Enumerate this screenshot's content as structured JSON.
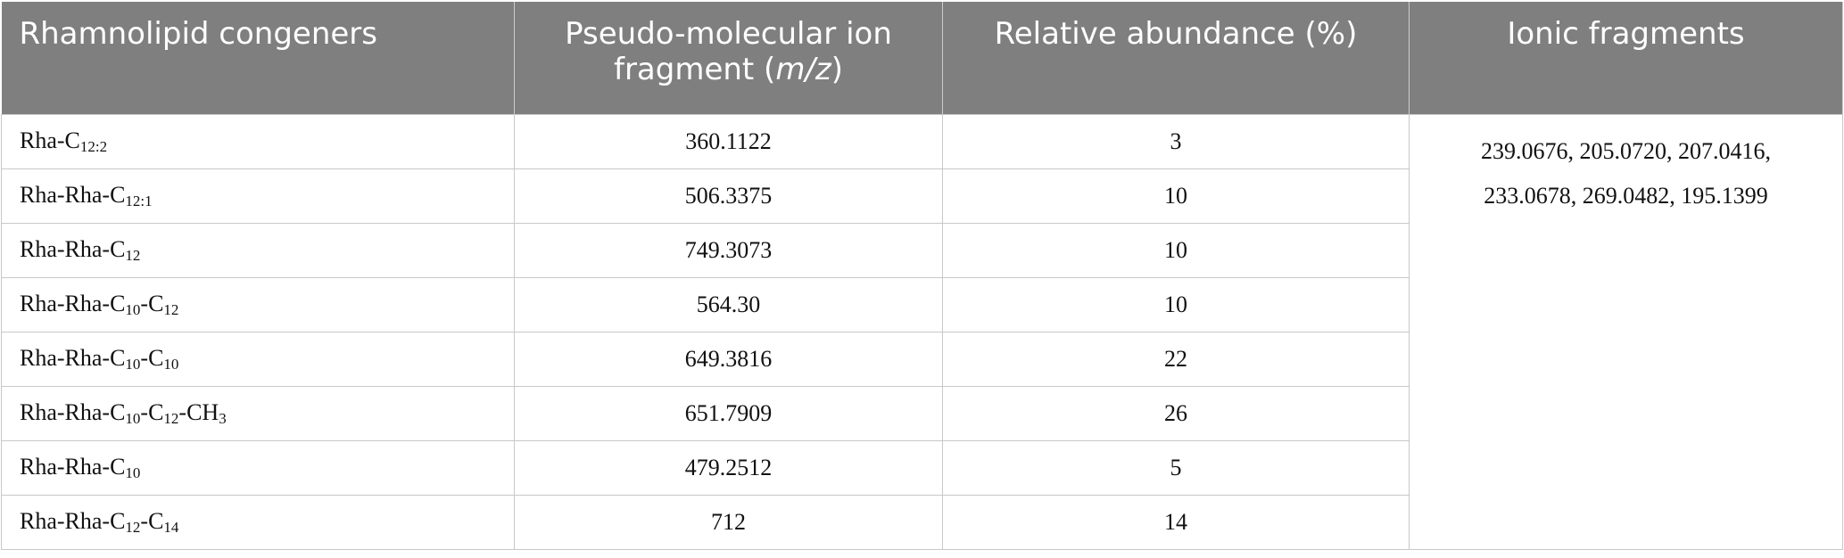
{
  "table": {
    "header": [
      [
        "Rhamnolipid congeners"
      ],
      [
        "Pseudo-molecular ion fragment (",
        "m/z",
        ")"
      ],
      [
        "Relative abundance (%)"
      ],
      [
        "Ionic fragments"
      ]
    ],
    "rows": [
      {
        "congener": [
          "Rha-C",
          "12:2"
        ],
        "ion": "360.1122",
        "abundance": "3"
      },
      {
        "congener": [
          "Rha-Rha-C",
          "12:1"
        ],
        "ion": "506.3375",
        "abundance": "10"
      },
      {
        "congener": [
          "Rha-Rha-C",
          "12"
        ],
        "ion": "749.3073",
        "abundance": "10"
      },
      {
        "congener": [
          "Rha-Rha-C",
          "10",
          "-C",
          "12"
        ],
        "ion": "564.30",
        "abundance": "10"
      },
      {
        "congener": [
          "Rha-Rha-C",
          "10",
          "-C",
          "10"
        ],
        "ion": "649.3816",
        "abundance": "22"
      },
      {
        "congener": [
          "Rha-Rha-C",
          "10",
          "-C",
          "12",
          "-CH",
          "3"
        ],
        "ion": "651.7909",
        "abundance": "26"
      },
      {
        "congener": [
          "Rha-Rha-C",
          "10"
        ],
        "ion": "479.2512",
        "abundance": "5"
      },
      {
        "congener": [
          "Rha-Rha-C",
          "12",
          "-C",
          "14"
        ],
        "ion": "712",
        "abundance": "14"
      }
    ],
    "ionic_fragments": [
      "239.0676, 205.0720, 207.0416,",
      "233.0678, 269.0482, 195.1399"
    ]
  }
}
